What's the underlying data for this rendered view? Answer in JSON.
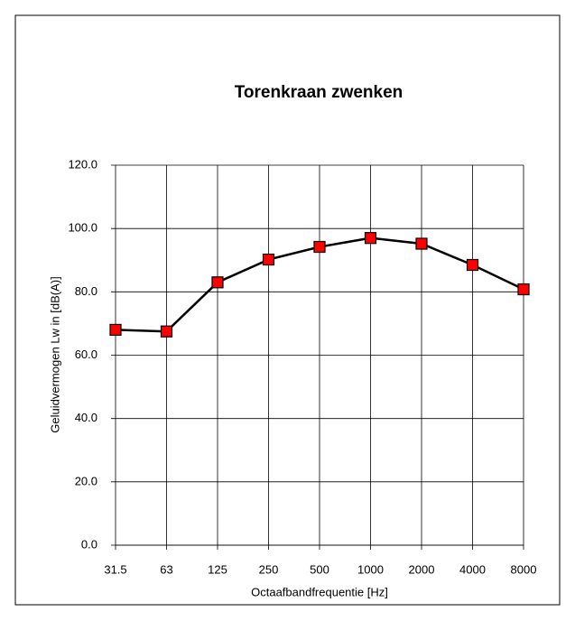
{
  "chart_data": {
    "type": "line",
    "title": "Torenkraan zwenken",
    "x_label": "Octaafbandfrequentie [Hz]",
    "y_label": "Geluidvermogen Lw in  [dB(A)]",
    "categories": [
      "31.5",
      "63",
      "125",
      "250",
      "500",
      "1000",
      "2000",
      "4000",
      "8000"
    ],
    "series": [
      {
        "name": "Torenkraan zwenken",
        "color": "#ff0000",
        "line_color": "#000000",
        "values": [
          68,
          67.5,
          83,
          90.2,
          94.2,
          97,
          95.2,
          88.5,
          80.8
        ]
      }
    ],
    "ylim": [
      0,
      120
    ],
    "yticks": [
      {
        "value": 0,
        "label": "0.0"
      },
      {
        "value": 20,
        "label": "20.0"
      },
      {
        "value": 40,
        "label": "40.0"
      },
      {
        "value": 60,
        "label": "60.0"
      },
      {
        "value": 80,
        "label": "80.0"
      },
      {
        "value": 100,
        "label": "100.0"
      },
      {
        "value": 120,
        "label": "120.0"
      }
    ],
    "grid": true
  }
}
